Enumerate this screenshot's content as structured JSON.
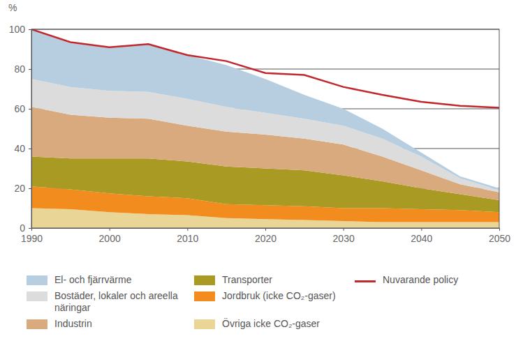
{
  "chart_data": {
    "type": "area",
    "stacked": true,
    "grid": true,
    "y_label": "%",
    "x": [
      1990,
      1995,
      2000,
      2005,
      2010,
      2015,
      2020,
      2025,
      2030,
      2035,
      2040,
      2045,
      2050
    ],
    "xlim": [
      1990,
      2050
    ],
    "xticks": [
      1990,
      2000,
      2010,
      2020,
      2030,
      2040,
      2050
    ],
    "ylim": [
      0,
      100
    ],
    "yticks": [
      0,
      20,
      40,
      60,
      80,
      100
    ],
    "series": [
      {
        "name": "Övriga icke CO₂-gaser",
        "type": "area",
        "color": "#e9d595",
        "values": [
          10,
          9.5,
          8,
          7,
          6.5,
          5,
          4.5,
          4,
          3.5,
          3,
          3,
          3,
          3
        ]
      },
      {
        "name": "Jordbruk (icke CO₂-gaser)",
        "type": "area",
        "color": "#f28c1e",
        "values": [
          11,
          10,
          9.5,
          9,
          8.5,
          7,
          7,
          7,
          6.5,
          7,
          6.5,
          6,
          5
        ]
      },
      {
        "name": "Transporter",
        "type": "area",
        "color": "#a89a22",
        "values": [
          15,
          15.5,
          17.5,
          19,
          18.5,
          19,
          18.5,
          18,
          16.5,
          13.5,
          10.5,
          8,
          6
        ]
      },
      {
        "name": "Industrin",
        "type": "area",
        "color": "#d8aa7e",
        "values": [
          25,
          22,
          20.5,
          20,
          18,
          17.5,
          17,
          16,
          15.5,
          12.5,
          9,
          5,
          4
        ]
      },
      {
        "name": "Bostäder, lokaler och areella näringar",
        "type": "area",
        "color": "#dcdcdc",
        "values": [
          14,
          14,
          13.5,
          13.5,
          13.5,
          12.5,
          11,
          10,
          9.5,
          9,
          7,
          3,
          1
        ]
      },
      {
        "name": "El- och fjärrvärme",
        "type": "area",
        "color": "#b7cee0",
        "values": [
          25,
          22,
          22,
          24,
          22,
          21,
          17,
          12,
          8.5,
          5,
          2,
          1,
          1
        ]
      },
      {
        "name": "Nuvarande policy",
        "type": "line",
        "color": "#c1272d",
        "values": [
          100,
          93.5,
          91,
          92.5,
          87,
          84,
          78,
          77,
          71,
          67,
          63.5,
          61.5,
          60.5
        ]
      }
    ]
  }
}
